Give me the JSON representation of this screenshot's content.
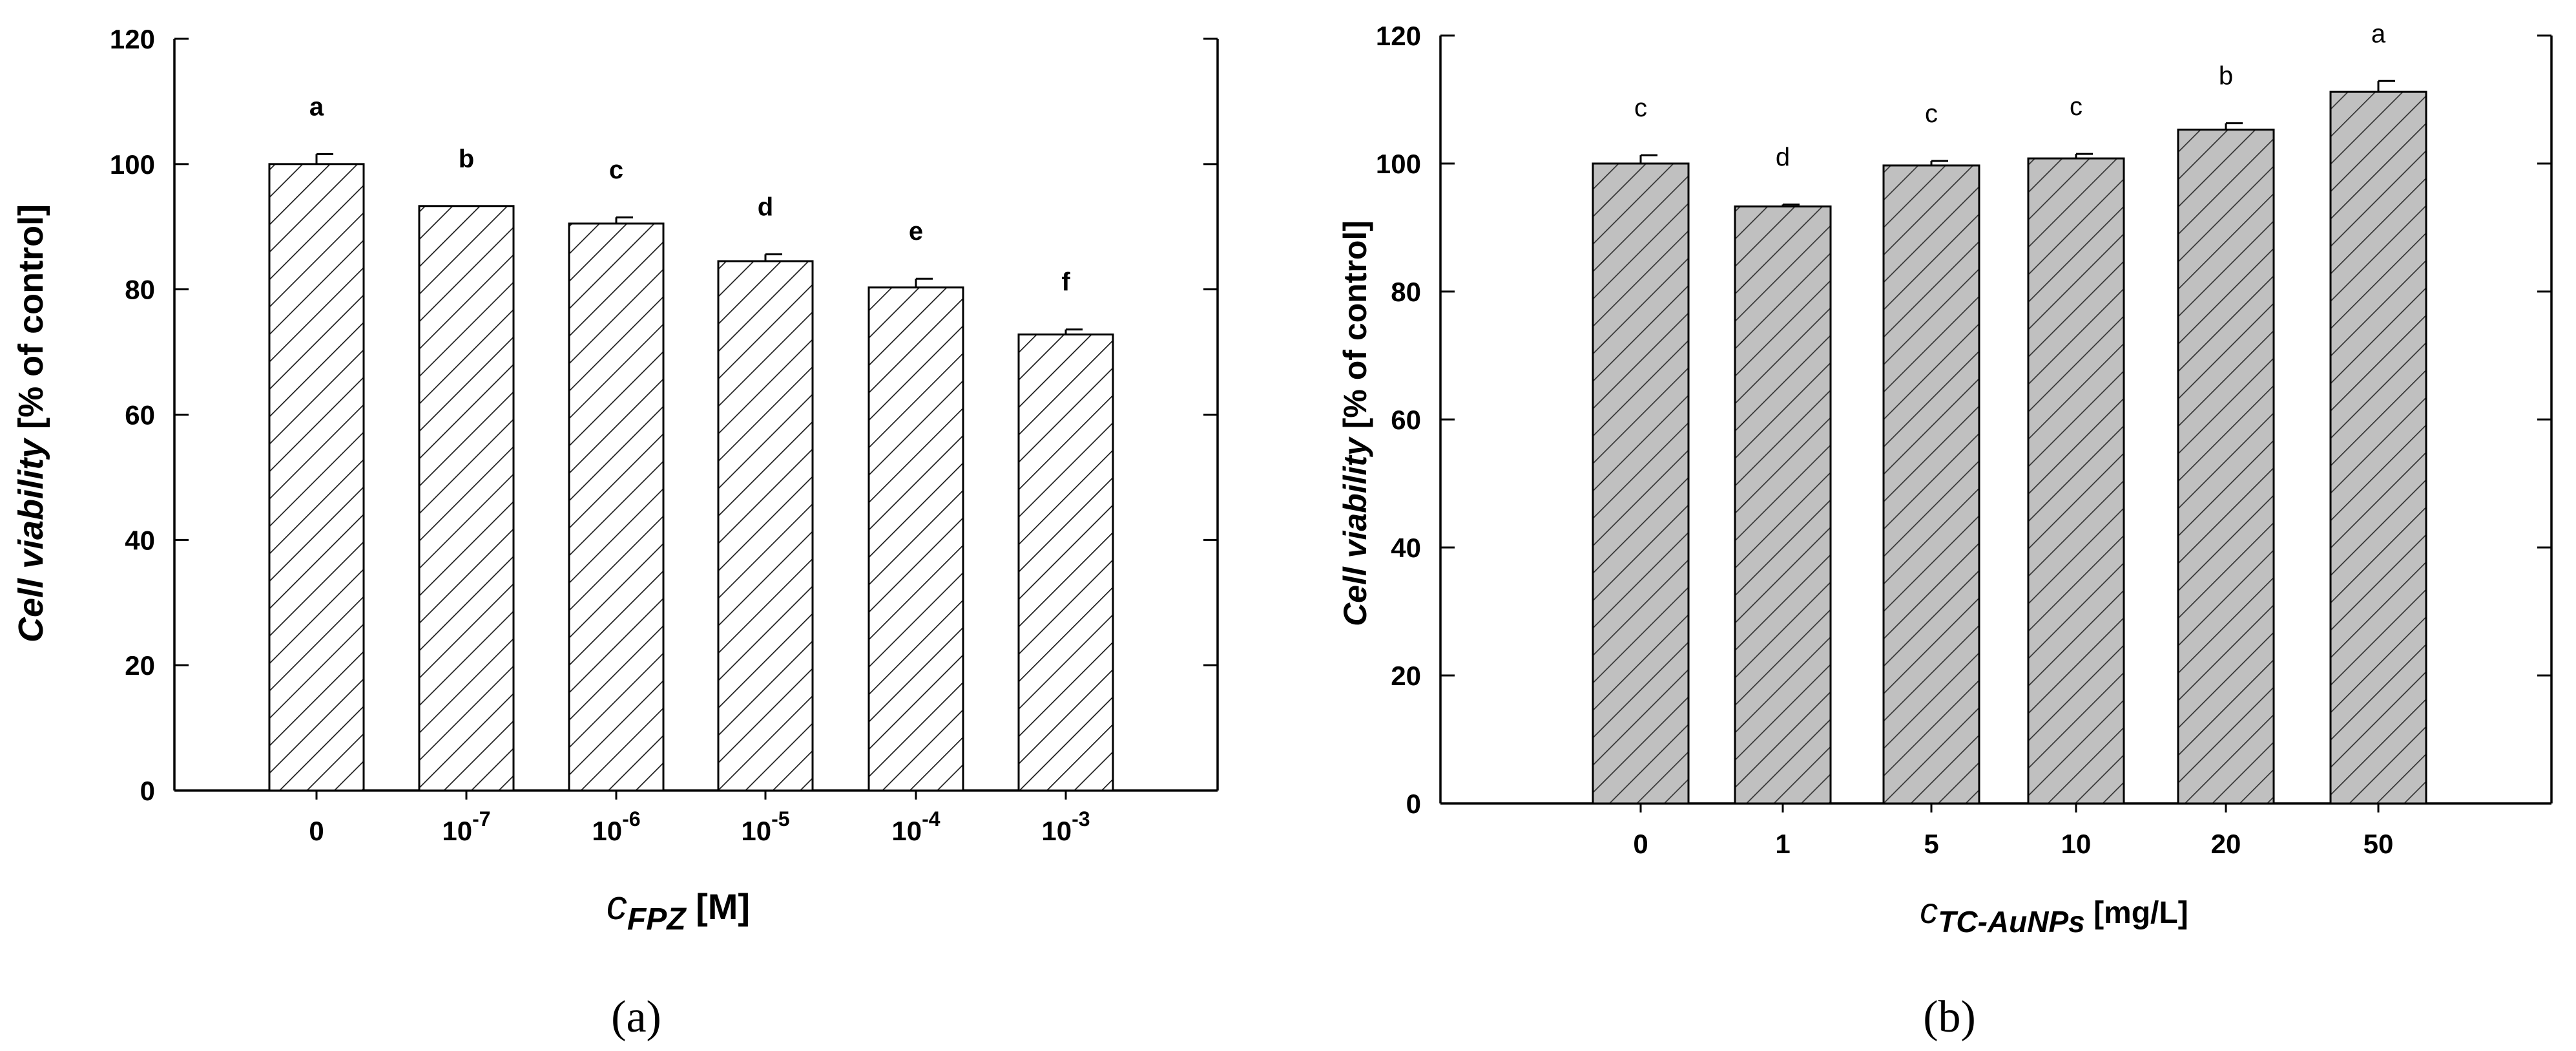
{
  "panels": [
    {
      "caption": "(a)",
      "chart_data": {
        "type": "bar",
        "categories": [
          "0",
          "10-7",
          "10-6",
          "10-5",
          "10-4",
          "10-3"
        ],
        "category_display": [
          {
            "base": "0",
            "exp": ""
          },
          {
            "base": "10",
            "exp": "-7"
          },
          {
            "base": "10",
            "exp": "-6"
          },
          {
            "base": "10",
            "exp": "-5"
          },
          {
            "base": "10",
            "exp": "-4"
          },
          {
            "base": "10",
            "exp": "-3"
          }
        ],
        "values": [
          100.0,
          93.3,
          90.5,
          84.5,
          80.3,
          72.8
        ],
        "errors": [
          1.6,
          0,
          1.0,
          1.1,
          1.4,
          0.8
        ],
        "significance_letters": [
          "a",
          "b",
          "c",
          "d",
          "e",
          "f"
        ],
        "xlabel": {
          "sym": "c",
          "sub": "FPZ",
          "unit": "[M]"
        },
        "ylabel": {
          "italic": "Cell viability",
          "rest": "[% of control]"
        },
        "ylim": [
          0,
          120
        ],
        "yticks": [
          "0",
          "20",
          "40",
          "60",
          "80",
          "100",
          "120"
        ],
        "bar_fill": "#ffffff",
        "hatch_color": "#1a1a1a",
        "grid": false
      }
    },
    {
      "caption": "(b)",
      "chart_data": {
        "type": "bar",
        "categories": [
          "0",
          "1",
          "5",
          "10",
          "20",
          "50"
        ],
        "category_display": [
          {
            "base": "0",
            "exp": ""
          },
          {
            "base": "1",
            "exp": ""
          },
          {
            "base": "5",
            "exp": ""
          },
          {
            "base": "10",
            "exp": ""
          },
          {
            "base": "20",
            "exp": ""
          },
          {
            "base": "50",
            "exp": ""
          }
        ],
        "values": [
          100.0,
          93.3,
          99.7,
          100.8,
          105.3,
          111.2
        ],
        "errors": [
          1.3,
          0.3,
          0.7,
          0.7,
          1.0,
          1.7
        ],
        "significance_letters": [
          "c",
          "d",
          "c",
          "c",
          "b",
          "a"
        ],
        "xlabel": {
          "sym": "c",
          "sub": "TC-AuNPs",
          "unit": "[mg/L]"
        },
        "ylabel": {
          "italic": "Cell viability",
          "rest": "[% of control]"
        },
        "ylim": [
          0,
          120
        ],
        "yticks": [
          "0",
          "20",
          "40",
          "60",
          "80",
          "100",
          "120"
        ],
        "bar_fill": "#c0c0c0",
        "hatch_color": "#333333",
        "grid": false
      }
    }
  ]
}
